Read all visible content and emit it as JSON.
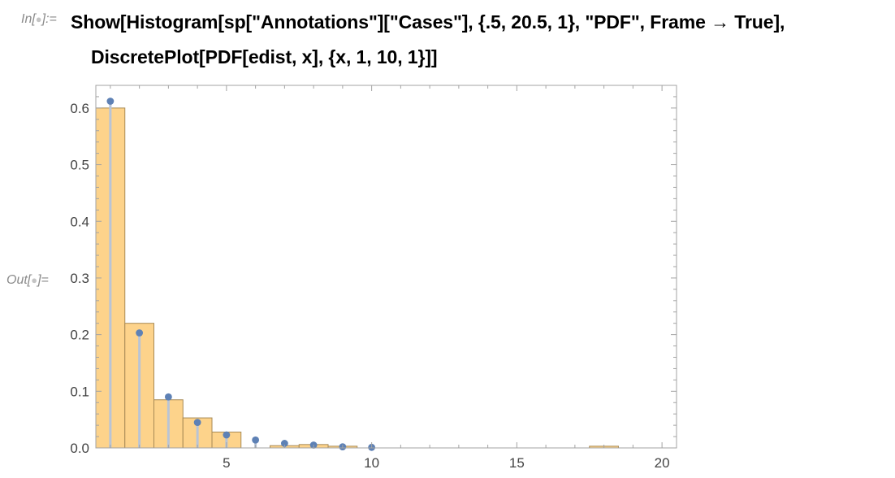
{
  "input_cell": {
    "label_prefix": "In[",
    "label_suffix": "]:=",
    "code_lines": [
      "Show[Histogram[sp[\"Annotations\"][\"Cases\"], {.5, 20.5, 1}, \"PDF\", Frame → True],",
      "DiscretePlot[PDF[edist, x], {x, 1, 10, 1}]]"
    ]
  },
  "output_cell": {
    "label_prefix": "Out[",
    "label_suffix": "]="
  },
  "colors": {
    "bar_fill": "#fdd38b",
    "bar_stroke": "#a88a55",
    "point": "#5e81b5",
    "stem": "#b9c4d6",
    "frame": "#a3a3a3"
  },
  "chart_data": {
    "type": "bar",
    "frame": true,
    "grid": false,
    "xlim": [
      0.5,
      20.5
    ],
    "ylim": [
      0,
      0.64
    ],
    "x_ticks": [
      5,
      10,
      15,
      20
    ],
    "y_ticks": [
      0.0,
      0.1,
      0.2,
      0.3,
      0.4,
      0.5,
      0.6
    ],
    "y_tick_labels": [
      "0.0",
      "0.1",
      "0.2",
      "0.3",
      "0.4",
      "0.5",
      "0.6"
    ],
    "series": [
      {
        "kind": "histogram",
        "bins": [
          {
            "from": 0.5,
            "to": 1.5,
            "value": 0.6
          },
          {
            "from": 1.5,
            "to": 2.5,
            "value": 0.22
          },
          {
            "from": 2.5,
            "to": 3.5,
            "value": 0.085
          },
          {
            "from": 3.5,
            "to": 4.5,
            "value": 0.053
          },
          {
            "from": 4.5,
            "to": 5.5,
            "value": 0.028
          },
          {
            "from": 6.5,
            "to": 7.5,
            "value": 0.004
          },
          {
            "from": 7.5,
            "to": 8.5,
            "value": 0.006
          },
          {
            "from": 8.5,
            "to": 9.5,
            "value": 0.003
          },
          {
            "from": 17.5,
            "to": 18.5,
            "value": 0.003
          }
        ]
      },
      {
        "kind": "discrete",
        "x": [
          1,
          2,
          3,
          4,
          5,
          6,
          7,
          8,
          9,
          10
        ],
        "y": [
          0.612,
          0.203,
          0.09,
          0.045,
          0.023,
          0.014,
          0.008,
          0.005,
          0.002,
          0.001
        ]
      }
    ]
  }
}
